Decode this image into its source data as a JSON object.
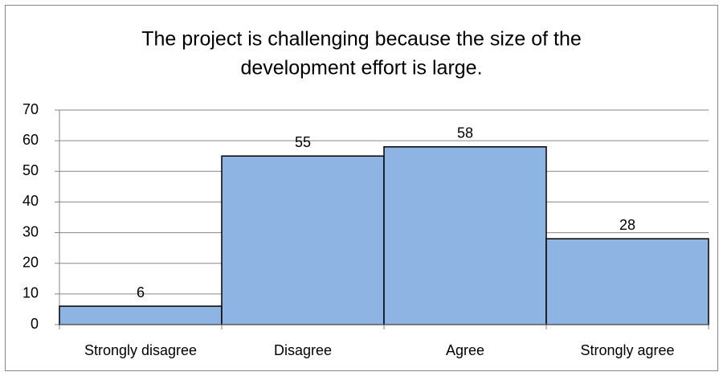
{
  "chart_data": {
    "type": "bar",
    "title": [
      "The project is challenging because the size of the",
      "development effort is large."
    ],
    "categories": [
      "Strongly disagree",
      "Disagree",
      "Agree",
      "Strongly agree"
    ],
    "values": [
      6,
      55,
      58,
      28
    ],
    "color": "#8eb4e3",
    "ylim": [
      0,
      70
    ],
    "yticks": [
      0,
      10,
      20,
      30,
      40,
      50,
      60,
      70
    ],
    "grid": true
  }
}
